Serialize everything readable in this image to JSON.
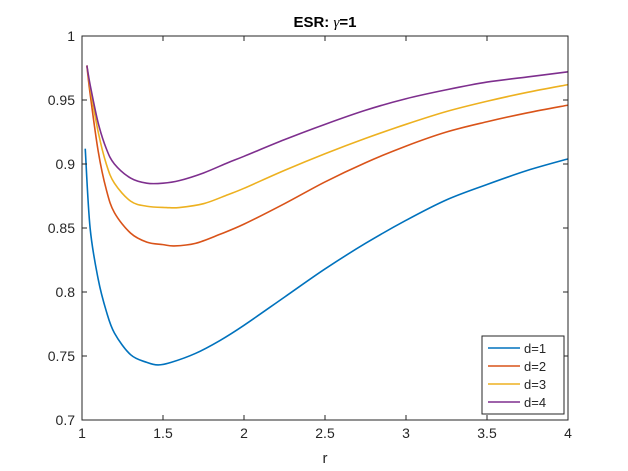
{
  "chart_data": {
    "type": "line",
    "title_prefix": "ESR: ",
    "title_symbol": "γ",
    "title_suffix": "=1",
    "xlabel": "r",
    "ylabel": "",
    "xlim": [
      1,
      4
    ],
    "ylim": [
      0.7,
      1
    ],
    "xticks": [
      "1",
      "1.5",
      "2",
      "2.5",
      "3",
      "3.5",
      "4"
    ],
    "yticks": [
      "0.7",
      "0.75",
      "0.8",
      "0.85",
      "0.9",
      "0.95",
      "1"
    ],
    "grid": false,
    "legend_position": "bottom-right",
    "series": [
      {
        "name": "d=1",
        "color": "#0072BD",
        "x": [
          1.02,
          1.05,
          1.1,
          1.15,
          1.2,
          1.3,
          1.4,
          1.47,
          1.55,
          1.7,
          1.85,
          2.0,
          2.25,
          2.5,
          2.75,
          3.0,
          3.25,
          3.5,
          3.75,
          4.0
        ],
        "y": [
          0.912,
          0.85,
          0.81,
          0.785,
          0.768,
          0.751,
          0.745,
          0.743,
          0.745,
          0.752,
          0.762,
          0.774,
          0.796,
          0.818,
          0.838,
          0.856,
          0.872,
          0.884,
          0.895,
          0.904
        ]
      },
      {
        "name": "d=2",
        "color": "#D95319",
        "x": [
          1.03,
          1.05,
          1.1,
          1.15,
          1.2,
          1.3,
          1.4,
          1.5,
          1.57,
          1.7,
          1.85,
          2.0,
          2.25,
          2.5,
          2.75,
          3.0,
          3.25,
          3.5,
          3.75,
          4.0
        ],
        "y": [
          0.977,
          0.955,
          0.91,
          0.88,
          0.862,
          0.846,
          0.839,
          0.837,
          0.836,
          0.838,
          0.845,
          0.853,
          0.869,
          0.886,
          0.901,
          0.914,
          0.925,
          0.933,
          0.94,
          0.946
        ]
      },
      {
        "name": "d=3",
        "color": "#EDB120",
        "x": [
          1.03,
          1.05,
          1.1,
          1.15,
          1.2,
          1.3,
          1.4,
          1.52,
          1.6,
          1.75,
          1.9,
          2.0,
          2.25,
          2.5,
          2.75,
          3.0,
          3.25,
          3.5,
          3.75,
          4.0
        ],
        "y": [
          0.977,
          0.96,
          0.925,
          0.9,
          0.885,
          0.871,
          0.867,
          0.866,
          0.866,
          0.869,
          0.876,
          0.881,
          0.895,
          0.908,
          0.92,
          0.931,
          0.941,
          0.949,
          0.956,
          0.962
        ]
      },
      {
        "name": "d=4",
        "color": "#7E2F8E",
        "x": [
          1.03,
          1.05,
          1.1,
          1.15,
          1.2,
          1.3,
          1.4,
          1.5,
          1.6,
          1.75,
          1.9,
          2.0,
          2.25,
          2.5,
          2.75,
          3.0,
          3.25,
          3.5,
          3.75,
          4.0
        ],
        "y": [
          0.977,
          0.962,
          0.932,
          0.912,
          0.9,
          0.889,
          0.885,
          0.885,
          0.887,
          0.893,
          0.901,
          0.906,
          0.919,
          0.931,
          0.942,
          0.951,
          0.958,
          0.964,
          0.968,
          0.972
        ]
      }
    ]
  }
}
